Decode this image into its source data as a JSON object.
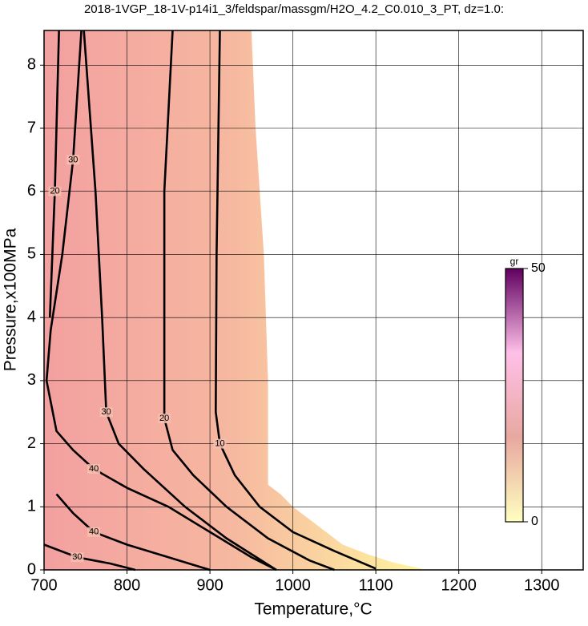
{
  "chart_data": {
    "type": "contour",
    "title": "2018-1VGP_18-1V-p14i1_3/feldspar/massgm/H2O_4.2_C0.010_3_PT, dz=1.0:",
    "xlabel": "Temperature,°C",
    "ylabel": "Pressure,x100MPa",
    "xlim": [
      700,
      1350
    ],
    "ylim": [
      0,
      8.55
    ],
    "xticks": [
      700,
      800,
      900,
      1000,
      1100,
      1200,
      1300
    ],
    "yticks": [
      0,
      1,
      2,
      3,
      4,
      5,
      6,
      7,
      8
    ],
    "grid": true,
    "stability_field": {
      "x": [
        700,
        700,
        950,
        955,
        965,
        970,
        970,
        985,
        1000,
        1020,
        1040,
        1060,
        1090,
        1120,
        1155,
        1155
      ],
      "y": [
        0,
        8.55,
        8.55,
        7,
        5,
        3,
        1.35,
        1.2,
        1.0,
        0.8,
        0.6,
        0.4,
        0.25,
        0.12,
        0.02,
        0
      ]
    },
    "field_colors": [
      "#f3a0a0",
      "#f6b8a0",
      "#fff4a0"
    ],
    "contours": [
      {
        "level": 10,
        "x": [
          912,
          908,
          907,
          912,
          930,
          960,
          1000,
          1050,
          1100
        ],
        "y": [
          8.55,
          5,
          2.5,
          2,
          1.5,
          1.0,
          0.6,
          0.3,
          0.02
        ]
      },
      {
        "level": 20,
        "x": [
          855,
          845,
          845,
          845,
          855,
          880,
          920,
          970,
          1020,
          1050
        ],
        "y": [
          8.55,
          6,
          4,
          2.4,
          1.9,
          1.5,
          1.0,
          0.5,
          0.15,
          0
        ]
      },
      {
        "level": 30,
        "x": [
          748,
          762,
          770,
          775,
          790,
          820,
          870,
          920,
          980
        ],
        "y": [
          8.55,
          6,
          4,
          2.5,
          2.0,
          1.6,
          1.0,
          0.5,
          0
        ]
      },
      {
        "level": 30,
        "x": [
          745,
          735,
          722,
          708,
          703
        ],
        "y": [
          8.55,
          6.5,
          5,
          3.8,
          3.0
        ]
      },
      {
        "level": 20,
        "x": [
          718,
          713,
          710,
          707
        ],
        "y": [
          8.55,
          6,
          5,
          4
        ]
      },
      {
        "level": 40,
        "x": [
          703,
          715,
          735,
          760,
          800,
          850,
          900,
          950,
          980
        ],
        "y": [
          3.0,
          2.2,
          1.9,
          1.6,
          1.3,
          1.0,
          0.6,
          0.2,
          0
        ]
      },
      {
        "level": 40,
        "x": [
          715,
          735,
          760,
          800,
          850,
          900
        ],
        "y": [
          1.2,
          0.9,
          0.6,
          0.4,
          0.2,
          0
        ]
      },
      {
        "level": 30,
        "x": [
          700,
          740,
          780,
          810
        ],
        "y": [
          0.4,
          0.2,
          0.1,
          0
        ]
      }
    ],
    "colorbar": {
      "label": "gr",
      "lim": [
        0,
        50
      ],
      "ticks": [
        0,
        50
      ],
      "colors": [
        "#ffffc0",
        "#e8a8a0",
        "#ffc0e8",
        "#600060"
      ]
    }
  }
}
